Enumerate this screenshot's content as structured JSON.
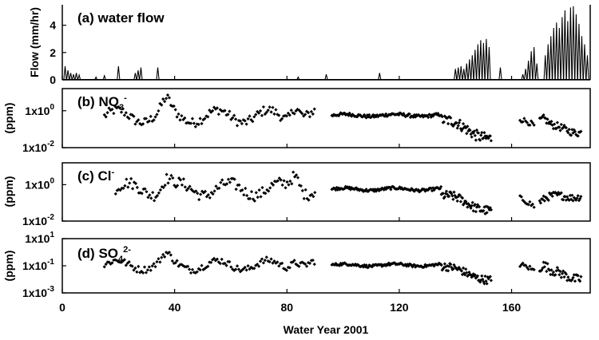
{
  "chart_data": {
    "type": "multi-panel time series",
    "xlabel": "Water Year 2001",
    "xlim": [
      0,
      188
    ],
    "xticks": [
      0,
      40,
      80,
      120,
      160
    ],
    "panels": [
      {
        "id": "a",
        "type": "line",
        "label_prefix": "(a) ",
        "label_main": "water flow",
        "ylabel": "Flow (mm/hr)",
        "ylim": [
          0,
          5.5
        ],
        "yticks": [
          {
            "value": 0,
            "text": "0"
          },
          {
            "value": 2,
            "text": "2"
          },
          {
            "value": 4,
            "text": "4"
          }
        ],
        "baseflow": [
          [
            0,
            0.02
          ],
          [
            188,
            0.02
          ]
        ],
        "spikes": [
          [
            1,
            1.0
          ],
          [
            2,
            0.7
          ],
          [
            3,
            0.5
          ],
          [
            4,
            0.4
          ],
          [
            5,
            0.5
          ],
          [
            6,
            0.35
          ],
          [
            12,
            0.2
          ],
          [
            15,
            0.3
          ],
          [
            20,
            1.0
          ],
          [
            26,
            0.5
          ],
          [
            27,
            0.7
          ],
          [
            28,
            0.9
          ],
          [
            34,
            0.9
          ],
          [
            84,
            0.2
          ],
          [
            94,
            0.4
          ],
          [
            113,
            0.5
          ],
          [
            140,
            0.8
          ],
          [
            141,
            0.9
          ],
          [
            142,
            1.0
          ],
          [
            143,
            0.8
          ],
          [
            144,
            1.2
          ],
          [
            145,
            1.5
          ],
          [
            146,
            1.8
          ],
          [
            147,
            2.2
          ],
          [
            148,
            2.6
          ],
          [
            149,
            2.9
          ],
          [
            150,
            2.7
          ],
          [
            151,
            3.0
          ],
          [
            152,
            2.4
          ],
          [
            156,
            0.9
          ],
          [
            164,
            0.4
          ],
          [
            165,
            0.8
          ],
          [
            166,
            1.4
          ],
          [
            167,
            2.1
          ],
          [
            168,
            2.4
          ],
          [
            169,
            1.2
          ],
          [
            172,
            1.8
          ],
          [
            173,
            2.6
          ],
          [
            174,
            3.2
          ],
          [
            175,
            3.8
          ],
          [
            176,
            4.2
          ],
          [
            177,
            3.8
          ],
          [
            178,
            4.6
          ],
          [
            179,
            5.1
          ],
          [
            180,
            4.3
          ],
          [
            181,
            5.3
          ],
          [
            182,
            5.4
          ],
          [
            183,
            4.8
          ],
          [
            184,
            4.1
          ],
          [
            185,
            3.2
          ],
          [
            186,
            2.6
          ],
          [
            187,
            1.8
          ]
        ]
      },
      {
        "id": "b",
        "type": "scatter",
        "label_prefix": "(b) ",
        "label_main": "NO",
        "label_sub": "3",
        "label_sup": "-",
        "ylabel": "(ppm)",
        "log": true,
        "ylim_log10": [
          -2,
          1.2
        ],
        "yticks": [
          {
            "value_log10": 0,
            "base": "1x10",
            "exp": "0"
          },
          {
            "value_log10": -2,
            "base": "1x10",
            "exp": "-2"
          }
        ],
        "segments": [
          {
            "start": 15,
            "end": 90,
            "step": 0.55,
            "base": -0.3,
            "amp": 0.35,
            "noise": 0.25,
            "bumps": [
              [
                37,
                0.65
              ],
              [
                83,
                0.75
              ]
            ]
          },
          {
            "start": 96,
            "end": 135,
            "step": 0.35,
            "base": -0.25,
            "amp": 0.06,
            "noise": 0.09,
            "bumps": []
          },
          {
            "start": 135,
            "end": 153,
            "step": 0.3,
            "base": -0.5,
            "amp": 0.15,
            "noise": 0.3,
            "trend": -1.0,
            "bumps": []
          },
          {
            "start": 163,
            "end": 168,
            "step": 0.5,
            "base": -0.45,
            "amp": 0.15,
            "noise": 0.15,
            "trend": -0.5,
            "bumps": []
          },
          {
            "start": 170,
            "end": 185,
            "step": 0.35,
            "base": -1.0,
            "amp": 0.2,
            "noise": 0.2,
            "bumps": [
              [
                171,
                0.5
              ]
            ]
          }
        ]
      },
      {
        "id": "c",
        "type": "scatter",
        "label_prefix": "(c) ",
        "label_main": "Cl",
        "label_sup": "-",
        "ylabel": "(ppm)",
        "log": true,
        "ylim_log10": [
          -2,
          1.2
        ],
        "yticks": [
          {
            "value_log10": 0,
            "base": "1x10",
            "exp": "0"
          },
          {
            "value_log10": -2,
            "base": "1x10",
            "exp": "-2"
          }
        ],
        "segments": [
          {
            "start": 19,
            "end": 90,
            "step": 0.55,
            "base": -0.25,
            "amp": 0.35,
            "noise": 0.3,
            "bumps": [
              [
                37,
                0.55
              ],
              [
                83,
                0.8
              ]
            ]
          },
          {
            "start": 96,
            "end": 135,
            "step": 0.35,
            "base": -0.25,
            "amp": 0.07,
            "noise": 0.08,
            "bumps": []
          },
          {
            "start": 135,
            "end": 153,
            "step": 0.3,
            "base": -0.6,
            "amp": 0.15,
            "noise": 0.25,
            "trend": -0.8,
            "bumps": []
          },
          {
            "start": 163,
            "end": 168,
            "step": 0.5,
            "base": -0.75,
            "amp": 0.15,
            "noise": 0.15,
            "trend": -0.6,
            "bumps": []
          },
          {
            "start": 170,
            "end": 185,
            "step": 0.35,
            "base": -0.95,
            "amp": 0.2,
            "noise": 0.2,
            "trend": 0.5,
            "bumps": []
          }
        ]
      },
      {
        "id": "d",
        "type": "scatter",
        "label_prefix": "(d) ",
        "label_main": "SO",
        "label_sub": "4",
        "label_sup": "2-",
        "ylabel": "(ppm)",
        "log": true,
        "ylim_log10": [
          -3,
          1
        ],
        "yticks": [
          {
            "value_log10": 1,
            "base": "1x10",
            "exp": "1"
          },
          {
            "value_log10": -1,
            "base": "1x10",
            "exp": "-1"
          },
          {
            "value_log10": -3,
            "base": "1x10",
            "exp": "-3"
          }
        ],
        "segments": [
          {
            "start": 15,
            "end": 90,
            "step": 0.55,
            "base": -0.95,
            "amp": 0.35,
            "noise": 0.25,
            "bumps": [
              [
                37,
                0.55
              ],
              [
                83,
                0.5
              ]
            ]
          },
          {
            "start": 96,
            "end": 135,
            "step": 0.35,
            "base": -0.95,
            "amp": 0.08,
            "noise": 0.1,
            "bumps": []
          },
          {
            "start": 135,
            "end": 153,
            "step": 0.3,
            "base": -1.05,
            "amp": 0.15,
            "noise": 0.3,
            "trend": -1.0,
            "bumps": []
          },
          {
            "start": 163,
            "end": 168,
            "step": 0.5,
            "base": -0.9,
            "amp": 0.15,
            "noise": 0.2,
            "trend": -0.6,
            "bumps": []
          },
          {
            "start": 170,
            "end": 185,
            "step": 0.35,
            "base": -1.7,
            "amp": 0.3,
            "noise": 0.35,
            "bumps": [
              [
                171,
                0.6
              ]
            ]
          }
        ]
      }
    ]
  }
}
